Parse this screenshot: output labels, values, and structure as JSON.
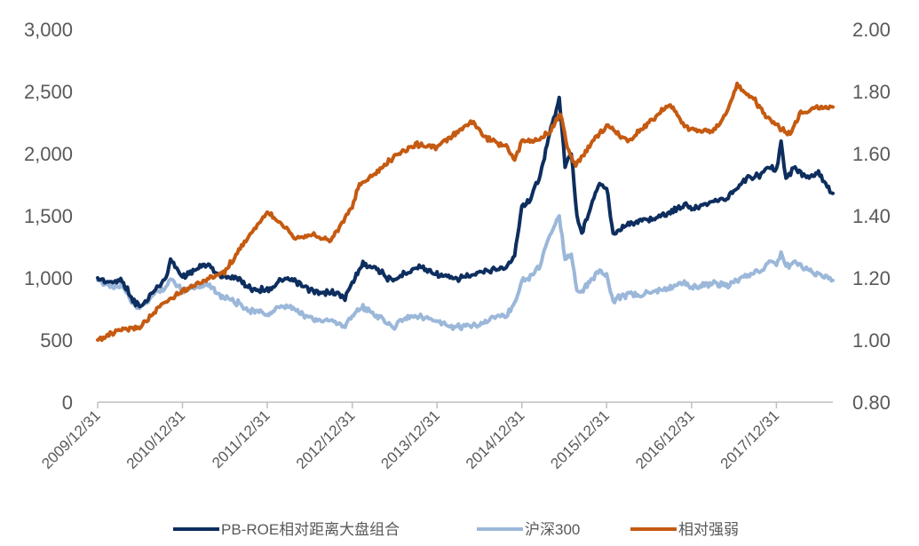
{
  "chart_data": {
    "type": "line",
    "title": "",
    "xlabel": "",
    "ylabel": "",
    "y2label": "",
    "grid": false,
    "legend_position": "bottom",
    "x_ticks": [
      "2009/12/31",
      "2010/12/31",
      "2011/12/31",
      "2012/12/31",
      "2013/12/31",
      "2014/12/31",
      "2015/12/31",
      "2016/12/31",
      "2017/12/31"
    ],
    "x_range": [
      "2009/12/31",
      "2018/08/31"
    ],
    "y_left": {
      "min": 0,
      "max": 3000,
      "ticks": [
        0,
        500,
        1000,
        1500,
        2000,
        2500,
        3000
      ],
      "tick_labels": [
        "0",
        "500",
        "1,000",
        "1,500",
        "2,000",
        "2,500",
        "3,000"
      ]
    },
    "y_right": {
      "min": 0.8,
      "max": 2.0,
      "ticks": [
        0.8,
        1.0,
        1.2,
        1.4,
        1.6,
        1.8,
        2.0
      ],
      "tick_labels": [
        "0.80",
        "1.00",
        "1.20",
        "1.40",
        "1.60",
        "1.80",
        "2.00"
      ]
    },
    "series": [
      {
        "name": "PB-ROE相对距离大盘组合",
        "axis": "left",
        "color": "#0d2e5e",
        "points": [
          [
            "2009/12/31",
            1000
          ],
          [
            "2010/02/28",
            960
          ],
          [
            "2010/04/15",
            985
          ],
          [
            "2010/05/31",
            820
          ],
          [
            "2010/07/05",
            760
          ],
          [
            "2010/08/31",
            900
          ],
          [
            "2010/10/15",
            980
          ],
          [
            "2010/11/10",
            1140
          ],
          [
            "2010/12/31",
            1010
          ],
          [
            "2011/02/15",
            1060
          ],
          [
            "2011/04/15",
            1110
          ],
          [
            "2011/06/15",
            1010
          ],
          [
            "2011/08/15",
            1010
          ],
          [
            "2011/10/15",
            920
          ],
          [
            "2011/12/31",
            900
          ],
          [
            "2012/02/28",
            980
          ],
          [
            "2012/04/15",
            980
          ],
          [
            "2012/06/15",
            920
          ],
          [
            "2012/08/15",
            870
          ],
          [
            "2012/09/30",
            890
          ],
          [
            "2012/11/30",
            840
          ],
          [
            "2012/12/31",
            960
          ],
          [
            "2013/02/15",
            1120
          ],
          [
            "2013/04/15",
            1080
          ],
          [
            "2013/06/25",
            960
          ],
          [
            "2013/08/15",
            1040
          ],
          [
            "2013/10/15",
            1090
          ],
          [
            "2013/12/31",
            1030
          ],
          [
            "2014/03/15",
            990
          ],
          [
            "2014/06/15",
            1030
          ],
          [
            "2014/08/31",
            1070
          ],
          [
            "2014/10/31",
            1090
          ],
          [
            "2014/11/30",
            1180
          ],
          [
            "2014/12/31",
            1580
          ],
          [
            "2015/01/31",
            1620
          ],
          [
            "2015/03/15",
            1800
          ],
          [
            "2015/04/30",
            2160
          ],
          [
            "2015/06/10",
            2450
          ],
          [
            "2015/07/05",
            1900
          ],
          [
            "2015/08/01",
            2000
          ],
          [
            "2015/08/25",
            1500
          ],
          [
            "2015/09/15",
            1350
          ],
          [
            "2015/10/31",
            1620
          ],
          [
            "2015/12/01",
            1750
          ],
          [
            "2015/12/31",
            1720
          ],
          [
            "2016/01/28",
            1360
          ],
          [
            "2016/03/15",
            1420
          ],
          [
            "2016/05/31",
            1460
          ],
          [
            "2016/08/31",
            1500
          ],
          [
            "2016/11/30",
            1590
          ],
          [
            "2016/12/31",
            1560
          ],
          [
            "2017/03/31",
            1620
          ],
          [
            "2017/05/31",
            1640
          ],
          [
            "2017/08/31",
            1800
          ],
          [
            "2017/10/31",
            1830
          ],
          [
            "2017/11/30",
            1900
          ],
          [
            "2017/12/31",
            1860
          ],
          [
            "2018/01/20",
            2080
          ],
          [
            "2018/02/10",
            1790
          ],
          [
            "2018/03/15",
            1880
          ],
          [
            "2018/05/15",
            1810
          ],
          [
            "2018/06/30",
            1850
          ],
          [
            "2018/08/31",
            1680
          ]
        ]
      },
      {
        "name": "沪深300",
        "axis": "left",
        "color": "#9bb7d9",
        "points": [
          [
            "2009/12/31",
            980
          ],
          [
            "2010/02/28",
            930
          ],
          [
            "2010/04/15",
            940
          ],
          [
            "2010/05/31",
            790
          ],
          [
            "2010/07/05",
            760
          ],
          [
            "2010/08/31",
            870
          ],
          [
            "2010/10/15",
            920
          ],
          [
            "2010/11/10",
            990
          ],
          [
            "2010/12/31",
            900
          ],
          [
            "2011/02/15",
            930
          ],
          [
            "2011/04/15",
            950
          ],
          [
            "2011/06/15",
            860
          ],
          [
            "2011/08/15",
            810
          ],
          [
            "2011/10/15",
            740
          ],
          [
            "2011/12/31",
            710
          ],
          [
            "2012/02/28",
            760
          ],
          [
            "2012/04/15",
            760
          ],
          [
            "2012/06/15",
            690
          ],
          [
            "2012/08/15",
            660
          ],
          [
            "2012/09/30",
            660
          ],
          [
            "2012/11/30",
            610
          ],
          [
            "2012/12/31",
            710
          ],
          [
            "2013/02/15",
            760
          ],
          [
            "2013/04/15",
            700
          ],
          [
            "2013/06/25",
            600
          ],
          [
            "2013/08/15",
            680
          ],
          [
            "2013/10/15",
            700
          ],
          [
            "2013/12/31",
            650
          ],
          [
            "2014/03/15",
            600
          ],
          [
            "2014/06/15",
            620
          ],
          [
            "2014/08/31",
            680
          ],
          [
            "2014/10/31",
            710
          ],
          [
            "2014/11/30",
            800
          ],
          [
            "2014/12/31",
            990
          ],
          [
            "2015/01/31",
            1000
          ],
          [
            "2015/03/15",
            1090
          ],
          [
            "2015/04/30",
            1340
          ],
          [
            "2015/06/10",
            1490
          ],
          [
            "2015/07/05",
            1160
          ],
          [
            "2015/08/01",
            1170
          ],
          [
            "2015/08/25",
            910
          ],
          [
            "2015/09/15",
            890
          ],
          [
            "2015/10/31",
            1000
          ],
          [
            "2015/12/01",
            1060
          ],
          [
            "2015/12/31",
            1030
          ],
          [
            "2016/01/28",
            820
          ],
          [
            "2016/03/15",
            860
          ],
          [
            "2016/05/31",
            860
          ],
          [
            "2016/08/31",
            910
          ],
          [
            "2016/11/30",
            960
          ],
          [
            "2016/12/31",
            920
          ],
          [
            "2017/03/31",
            960
          ],
          [
            "2017/05/31",
            940
          ],
          [
            "2017/08/31",
            1020
          ],
          [
            "2017/10/31",
            1060
          ],
          [
            "2017/11/30",
            1140
          ],
          [
            "2017/12/31",
            1110
          ],
          [
            "2018/01/20",
            1210
          ],
          [
            "2018/02/10",
            1090
          ],
          [
            "2018/03/15",
            1120
          ],
          [
            "2018/05/15",
            1070
          ],
          [
            "2018/06/30",
            1030
          ],
          [
            "2018/08/31",
            980
          ]
        ]
      },
      {
        "name": "相对强弱",
        "axis": "right",
        "color": "#c55a11",
        "points": [
          [
            "2009/12/31",
            1.0
          ],
          [
            "2010/03/31",
            1.03
          ],
          [
            "2010/06/30",
            1.04
          ],
          [
            "2010/09/30",
            1.11
          ],
          [
            "2010/12/31",
            1.16
          ],
          [
            "2011/03/31",
            1.19
          ],
          [
            "2011/06/30",
            1.22
          ],
          [
            "2011/09/30",
            1.32
          ],
          [
            "2011/12/31",
            1.41
          ],
          [
            "2012/02/28",
            1.38
          ],
          [
            "2012/04/30",
            1.33
          ],
          [
            "2012/06/30",
            1.34
          ],
          [
            "2012/09/30",
            1.32
          ],
          [
            "2012/12/31",
            1.43
          ],
          [
            "2013/01/31",
            1.5
          ],
          [
            "2013/03/31",
            1.53
          ],
          [
            "2013/06/30",
            1.59
          ],
          [
            "2013/09/30",
            1.63
          ],
          [
            "2013/12/31",
            1.62
          ],
          [
            "2014/03/31",
            1.67
          ],
          [
            "2014/05/31",
            1.7
          ],
          [
            "2014/07/31",
            1.65
          ],
          [
            "2014/10/31",
            1.62
          ],
          [
            "2014/11/30",
            1.58
          ],
          [
            "2014/12/31",
            1.64
          ],
          [
            "2015/02/28",
            1.64
          ],
          [
            "2015/04/30",
            1.67
          ],
          [
            "2015/06/15",
            1.73
          ],
          [
            "2015/07/15",
            1.62
          ],
          [
            "2015/08/20",
            1.56
          ],
          [
            "2015/10/31",
            1.64
          ],
          [
            "2015/12/31",
            1.69
          ],
          [
            "2016/03/31",
            1.64
          ],
          [
            "2016/06/30",
            1.7
          ],
          [
            "2016/09/30",
            1.76
          ],
          [
            "2016/11/30",
            1.69
          ],
          [
            "2016/12/31",
            1.68
          ],
          [
            "2017/03/31",
            1.67
          ],
          [
            "2017/05/31",
            1.73
          ],
          [
            "2017/07/15",
            1.82
          ],
          [
            "2017/09/30",
            1.77
          ],
          [
            "2017/11/15",
            1.72
          ],
          [
            "2017/12/31",
            1.69
          ],
          [
            "2018/02/28",
            1.66
          ],
          [
            "2018/04/15",
            1.73
          ],
          [
            "2018/06/30",
            1.75
          ],
          [
            "2018/08/31",
            1.75
          ]
        ]
      }
    ]
  }
}
